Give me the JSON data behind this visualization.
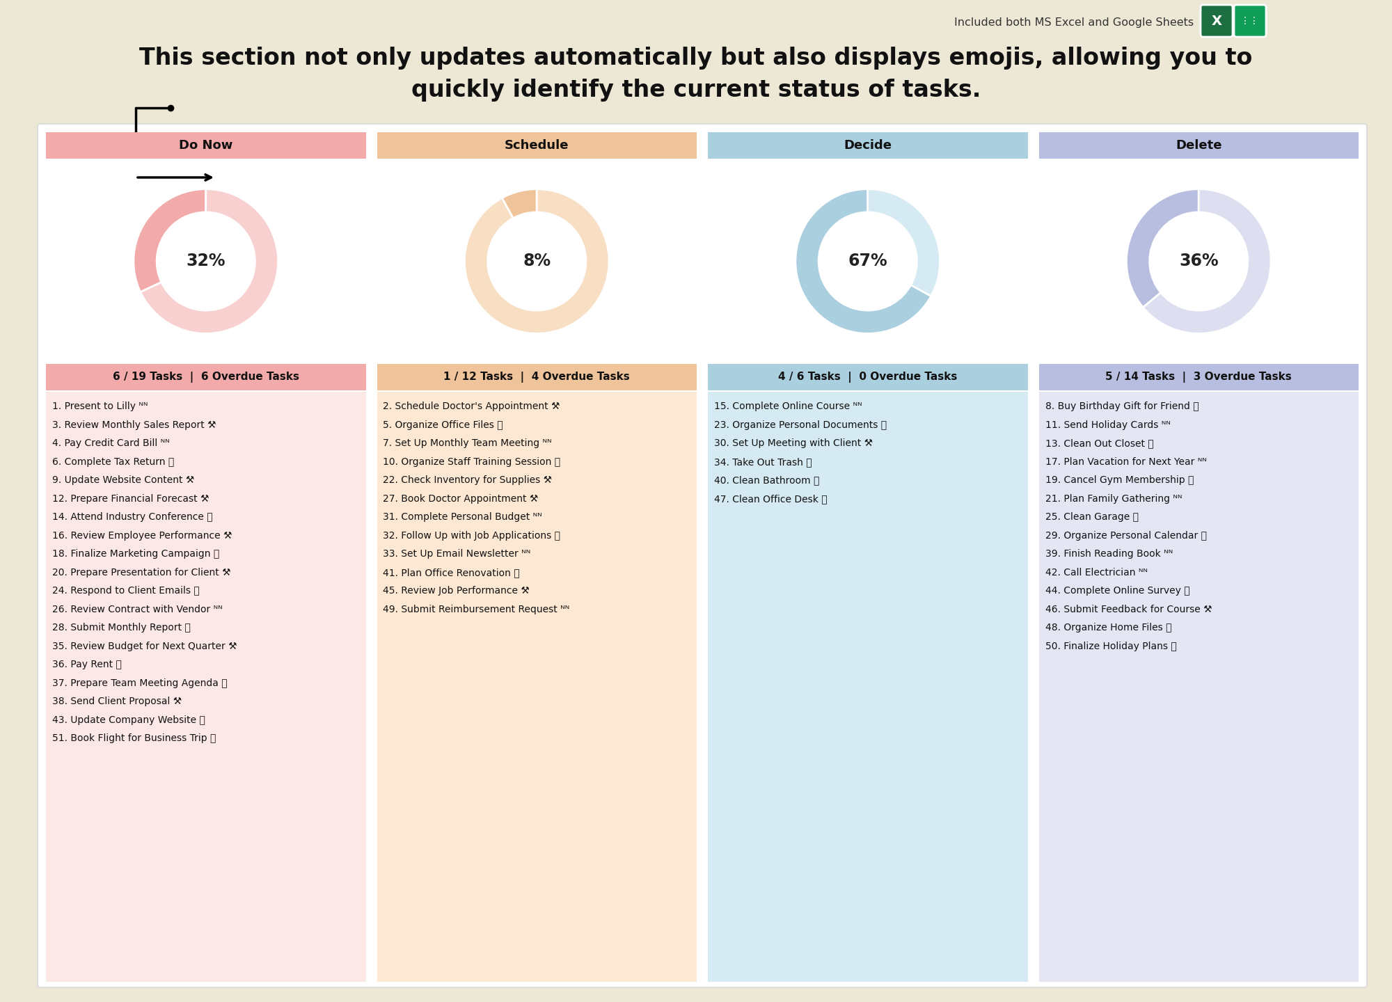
{
  "bg_color": "#EDE8D5",
  "panel_bg": "#FFFFFF",
  "title_text_line1": "This section not only updates automatically but also displays emojis, allowing you to",
  "title_text_line2": "quickly identify the current status of tasks.",
  "top_note": "Included both MS Excel and Google Sheets",
  "quadrants": [
    {
      "title": "Do Now",
      "title_bg": "#F2AAAA",
      "list_bg": "#FDE8E8",
      "donut_pct": 32,
      "donut_filled": "#F2AAAA",
      "donut_empty": "#F9D0D0",
      "task_summary": "6 / 19 Tasks  |  6 Overdue Tasks",
      "tasks": [
        "1. Present to Lilly ᴺᴺ",
        "3. Review Monthly Sales Report ⚒️",
        "4. Pay Credit Card Bill ᴺᴺ",
        "6. Complete Tax Return ✅",
        "9. Update Website Content ⚒️",
        "12. Prepare Financial Forecast ⚒️",
        "14. Attend Industry Conference ✅",
        "16. Review Employee Performance ⚒️",
        "18. Finalize Marketing Campaign ✅",
        "20. Prepare Presentation for Client ⚒️",
        "24. Respond to Client Emails ✅",
        "26. Review Contract with Vendor ᴺᴺ",
        "28. Submit Monthly Report ✅",
        "35. Review Budget for Next Quarter ⚒️",
        "36. Pay Rent ✅",
        "37. Prepare Team Meeting Agenda ⏸️",
        "38. Send Client Proposal ⚒️",
        "43. Update Company Website ⏸️",
        "51. Book Flight for Business Trip ⏸️"
      ]
    },
    {
      "title": "Schedule",
      "title_bg": "#F0C49A",
      "list_bg": "#FDE9D3",
      "donut_pct": 8,
      "donut_filled": "#F0C49A",
      "donut_empty": "#F8DFC4",
      "task_summary": "1 / 12 Tasks  |  4 Overdue Tasks",
      "tasks": [
        "2. Schedule Doctor's Appointment ⚒️",
        "5. Organize Office Files ⏸️",
        "7. Set Up Monthly Team Meeting ᴺᴺ",
        "10. Organize Staff Training Session ⏸️",
        "22. Check Inventory for Supplies ⚒️",
        "27. Book Doctor Appointment ⚒️",
        "31. Complete Personal Budget ᴺᴺ",
        "32. Follow Up with Job Applications ✅",
        "33. Set Up Email Newsletter ᴺᴺ",
        "41. Plan Office Renovation ⏸️",
        "45. Review Job Performance ⚒️",
        "49. Submit Reimbursement Request ᴺᴺ"
      ]
    },
    {
      "title": "Decide",
      "title_bg": "#AACFDF",
      "list_bg": "#D5EAF2",
      "donut_pct": 67,
      "donut_filled": "#AACFDF",
      "donut_empty": "#D5EAF2",
      "task_summary": "4 / 6 Tasks  |  0 Overdue Tasks",
      "tasks": [
        "15. Complete Online Course ᴺᴺ",
        "23. Organize Personal Documents ✅",
        "30. Set Up Meeting with Client ⚒️",
        "34. Take Out Trash ✅",
        "40. Clean Bathroom ✅",
        "47. Clean Office Desk ✅"
      ]
    },
    {
      "title": "Delete",
      "title_bg": "#B8BEDF",
      "list_bg": "#E4E6F4",
      "donut_pct": 36,
      "donut_filled": "#B8BEDF",
      "donut_empty": "#DDDFF0",
      "task_summary": "5 / 14 Tasks  |  3 Overdue Tasks",
      "tasks": [
        "8. Buy Birthday Gift for Friend ✅",
        "11. Send Holiday Cards ᴺᴺ",
        "13. Clean Out Closet ✅",
        "17. Plan Vacation for Next Year ᴺᴺ",
        "19. Cancel Gym Membership ❌",
        "21. Plan Family Gathering ᴺᴺ",
        "25. Clean Garage ⏸️",
        "29. Organize Personal Calendar ✅",
        "39. Finish Reading Book ᴺᴺ",
        "42. Call Electrician ᴺᴺ",
        "44. Complete Online Survey ✅",
        "46. Submit Feedback for Course ⚒️",
        "48. Organize Home Files ⏸️",
        "50. Finalize Holiday Plans ✅"
      ]
    }
  ]
}
